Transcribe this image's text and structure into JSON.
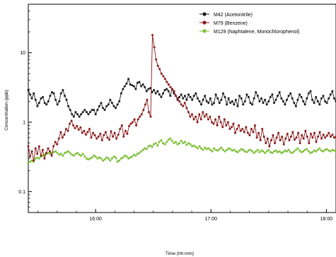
{
  "chart_data": {
    "type": "line",
    "xlabel": "Time (hh:mm)",
    "ylabel": "Concentration (ppb)",
    "y_scale": "log",
    "ylim": [
      0.05,
      50
    ],
    "xlim": [
      "15:25",
      "18:05"
    ],
    "x_ticks": [
      "16:00",
      "17:00",
      "18:00"
    ],
    "y_ticks": [
      {
        "value": 0.1,
        "label": "0.1"
      },
      {
        "value": 1,
        "label": "1"
      },
      {
        "value": 10,
        "label": "10"
      }
    ],
    "grid": false,
    "legend_position": "top-right",
    "start_time": "15:25",
    "end_time": "18:05",
    "series": [
      {
        "name": "M42 (Acetonitrile)",
        "color": "#1a1a1a",
        "values": [
          2.9,
          2.5,
          2.2,
          2.6,
          2.1,
          1.7,
          1.9,
          2.2,
          2.3,
          1.9,
          1.8,
          2.0,
          2.4,
          2.7,
          2.6,
          2.1,
          1.8,
          2.0,
          2.6,
          2.9,
          2.4,
          2.1,
          1.7,
          1.5,
          1.3,
          1.2,
          1.4,
          1.3,
          1.2,
          1.3,
          1.4,
          1.5,
          1.4,
          1.3,
          1.4,
          1.5,
          1.5,
          1.3,
          1.5,
          1.7,
          1.9,
          1.6,
          1.5,
          1.7,
          1.8,
          2.1,
          1.9,
          1.7,
          1.6,
          1.8,
          2.0,
          2.6,
          3.0,
          3.3,
          3.6,
          4.2,
          3.5,
          3.4,
          3.3,
          3.0,
          3.7,
          3.8,
          3.3,
          3.5,
          3.2,
          2.8,
          3.0,
          3.1,
          2.7,
          2.9,
          2.6,
          2.8,
          2.5,
          2.3,
          2.6,
          2.9,
          3.0,
          2.8,
          2.4,
          3.0,
          2.6,
          2.4,
          2.1,
          2.3,
          2.5,
          2.2,
          2.4,
          2.1,
          2.5,
          2.3,
          2.1,
          2.4,
          2.6,
          2.2,
          2.0,
          1.8,
          2.1,
          2.4,
          2.0,
          1.9,
          2.2,
          1.8,
          1.9,
          2.5,
          2.2,
          1.9,
          2.1,
          2.6,
          2.3,
          1.8,
          2.2,
          1.9,
          2.0,
          1.8,
          2.1,
          1.7,
          2.4,
          2.2,
          1.8,
          2.0,
          2.5,
          2.3,
          1.9,
          1.8,
          2.2,
          2.7,
          2.4,
          2.0,
          2.2,
          1.9,
          2.1,
          1.8,
          2.0,
          2.3,
          2.5,
          1.9,
          2.1,
          2.4,
          2.7,
          2.2,
          2.0,
          1.8,
          2.1,
          2.4,
          2.6,
          2.2,
          1.9,
          1.7,
          2.1,
          2.5,
          2.3,
          2.0,
          1.8,
          2.2,
          2.6,
          2.8,
          2.1,
          1.9,
          2.3,
          2.0,
          1.8,
          2.2,
          2.4,
          2.0,
          1.9,
          2.2,
          2.5,
          2.8,
          2.2,
          2.0
        ]
      },
      {
        "name": "M79 (Benzene)",
        "color": "#8b1a1a",
        "values": [
          0.45,
          0.32,
          0.38,
          0.28,
          0.42,
          0.35,
          0.45,
          0.33,
          0.4,
          0.3,
          0.36,
          0.42,
          0.38,
          0.33,
          0.45,
          0.52,
          0.48,
          0.58,
          0.72,
          0.6,
          0.66,
          0.8,
          0.75,
          0.95,
          1.05,
          0.9,
          0.82,
          0.88,
          0.78,
          0.84,
          0.7,
          0.75,
          0.66,
          0.72,
          0.8,
          0.6,
          0.7,
          0.65,
          0.58,
          0.62,
          0.68,
          0.55,
          0.65,
          0.72,
          0.6,
          0.56,
          0.74,
          0.62,
          0.7,
          0.58,
          0.66,
          0.8,
          0.9,
          0.62,
          0.75,
          0.68,
          0.88,
          0.95,
          1.0,
          1.1,
          0.9,
          1.1,
          1.2,
          1.3,
          1.5,
          1.8,
          2.1,
          1.4,
          1.2,
          18.0,
          12.0,
          8.0,
          6.5,
          5.8,
          5.0,
          4.6,
          4.2,
          3.8,
          3.5,
          3.2,
          3.0,
          2.8,
          2.4,
          2.2,
          2.0,
          1.8,
          1.7,
          1.9,
          1.6,
          1.4,
          1.2,
          1.3,
          1.1,
          1.2,
          1.0,
          1.3,
          1.1,
          1.4,
          1.2,
          1.3,
          1.1,
          1.2,
          1.0,
          0.95,
          1.1,
          0.9,
          1.2,
          1.0,
          0.85,
          1.1,
          0.9,
          1.0,
          0.8,
          0.85,
          0.95,
          0.7,
          0.8,
          0.9,
          0.75,
          0.8,
          0.72,
          0.85,
          0.7,
          0.65,
          0.8,
          0.72,
          0.9,
          0.6,
          0.7,
          0.55,
          0.8,
          0.62,
          0.5,
          0.58,
          0.45,
          0.55,
          0.65,
          0.5,
          0.6,
          0.7,
          0.55,
          0.62,
          0.48,
          0.58,
          0.68,
          0.55,
          0.62,
          0.72,
          0.56,
          0.6,
          0.7,
          0.5,
          0.65,
          0.58,
          0.75,
          0.62,
          0.5,
          0.68,
          0.6,
          0.7,
          0.52,
          0.62,
          0.72,
          0.58,
          0.66,
          0.6,
          0.64,
          0.7,
          0.62,
          0.66,
          0.6,
          0.62
        ]
      },
      {
        "name": "M129 (Naphtalene, Monochlorophenol)",
        "color": "#7cc035",
        "values": [
          0.26,
          0.27,
          0.28,
          0.27,
          0.3,
          0.31,
          0.3,
          0.32,
          0.33,
          0.34,
          0.35,
          0.36,
          0.35,
          0.36,
          0.37,
          0.38,
          0.36,
          0.34,
          0.35,
          0.33,
          0.36,
          0.37,
          0.38,
          0.36,
          0.34,
          0.33,
          0.35,
          0.36,
          0.34,
          0.33,
          0.35,
          0.32,
          0.3,
          0.29,
          0.3,
          0.31,
          0.33,
          0.32,
          0.3,
          0.31,
          0.3,
          0.28,
          0.29,
          0.31,
          0.3,
          0.28,
          0.3,
          0.32,
          0.31,
          0.27,
          0.28,
          0.3,
          0.31,
          0.33,
          0.32,
          0.3,
          0.31,
          0.32,
          0.34,
          0.33,
          0.35,
          0.36,
          0.38,
          0.4,
          0.42,
          0.41,
          0.45,
          0.46,
          0.44,
          0.48,
          0.5,
          0.46,
          0.52,
          0.55,
          0.5,
          0.48,
          0.52,
          0.56,
          0.58,
          0.54,
          0.5,
          0.52,
          0.48,
          0.5,
          0.54,
          0.5,
          0.52,
          0.47,
          0.5,
          0.48,
          0.45,
          0.46,
          0.44,
          0.42,
          0.45,
          0.42,
          0.4,
          0.43,
          0.41,
          0.42,
          0.4,
          0.38,
          0.42,
          0.4,
          0.39,
          0.41,
          0.43,
          0.4,
          0.38,
          0.4,
          0.42,
          0.41,
          0.39,
          0.4,
          0.38,
          0.37,
          0.39,
          0.41,
          0.4,
          0.38,
          0.37,
          0.39,
          0.4,
          0.38,
          0.36,
          0.38,
          0.4,
          0.37,
          0.39,
          0.38,
          0.36,
          0.38,
          0.4,
          0.37,
          0.36,
          0.38,
          0.39,
          0.37,
          0.38,
          0.36,
          0.37,
          0.39,
          0.38,
          0.4,
          0.37,
          0.36,
          0.38,
          0.4,
          0.42,
          0.39,
          0.37,
          0.38,
          0.4,
          0.41,
          0.38,
          0.36,
          0.37,
          0.39,
          0.38,
          0.4,
          0.42,
          0.39,
          0.38,
          0.4,
          0.41,
          0.39,
          0.38,
          0.4,
          0.39,
          0.38
        ]
      }
    ]
  }
}
